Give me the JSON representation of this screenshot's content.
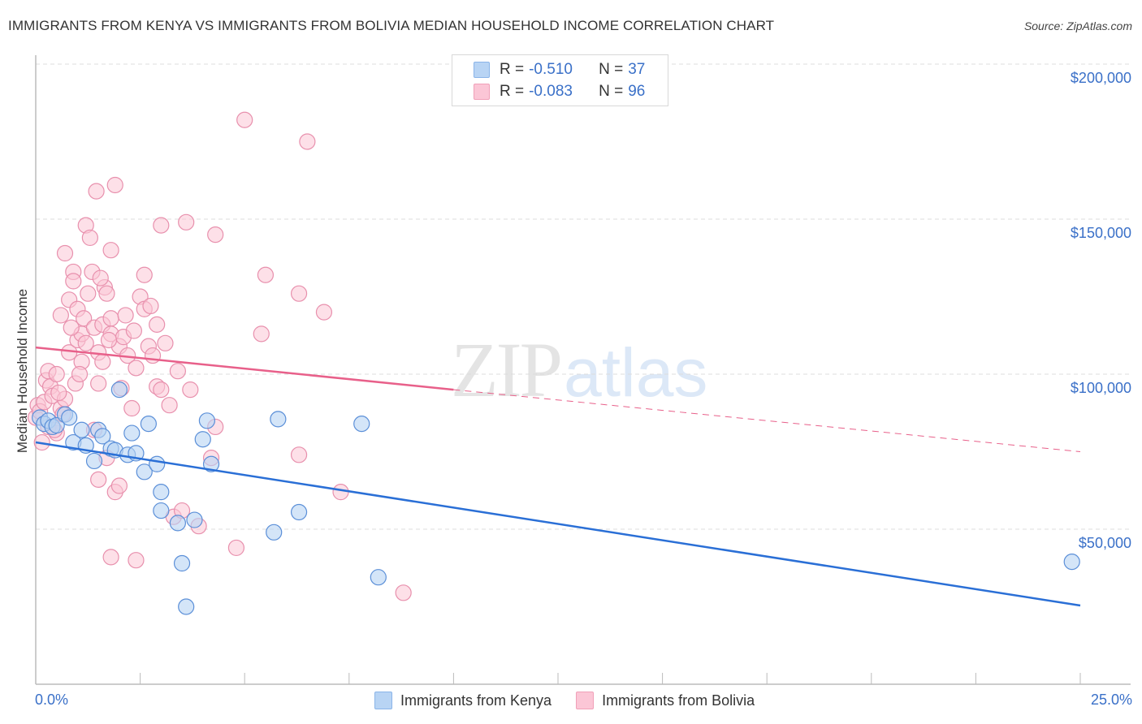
{
  "header": {
    "title": "IMMIGRANTS FROM KENYA VS IMMIGRANTS FROM BOLIVIA MEDIAN HOUSEHOLD INCOME CORRELATION CHART",
    "source": "Source: ZipAtlas.com"
  },
  "legend": {
    "rows": [
      {
        "r_label": "R =",
        "r_value": "-0.510",
        "n_label": "N =",
        "n_value": "37"
      },
      {
        "r_label": "R =",
        "r_value": "-0.083",
        "n_label": "N =",
        "n_value": "96"
      }
    ]
  },
  "axes": {
    "y_label": "Median Household Income",
    "y_ticks": [
      "$200,000",
      "$150,000",
      "$100,000",
      "$50,000"
    ],
    "x_min_label": "0.0%",
    "x_max_label": "25.0%"
  },
  "bottom_legend": {
    "series_1": "Immigrants from Kenya",
    "series_2": "Immigrants from Bolivia"
  },
  "watermark": {
    "zip": "ZIP",
    "atlas": "atlas"
  },
  "colors": {
    "kenya_fill": "#b8d4f4",
    "kenya_stroke": "#5b8fd8",
    "kenya_line": "#2a6fd6",
    "bolivia_fill": "#fbc6d6",
    "bolivia_stroke": "#e890ad",
    "bolivia_line": "#e8608a",
    "tick_text": "#3a70c8"
  },
  "chart_data": {
    "type": "scatter",
    "title": "IMMIGRANTS FROM KENYA VS IMMIGRANTS FROM BOLIVIA MEDIAN HOUSEHOLD INCOME CORRELATION CHART",
    "xlabel": "",
    "ylabel": "Median Household Income",
    "xlim": [
      0,
      25
    ],
    "ylim": [
      0,
      210000
    ],
    "x_unit": "%",
    "y_ticks": [
      50000,
      100000,
      150000,
      200000
    ],
    "x_tick_labels": [
      "0.0%",
      "25.0%"
    ],
    "grid": true,
    "legend_position": "top-center",
    "series": [
      {
        "name": "Immigrants from Kenya",
        "R": -0.51,
        "N": 37,
        "color": "#b8d4f4",
        "trend": {
          "x": [
            0,
            25
          ],
          "y": [
            78000,
            25400
          ]
        },
        "points": [
          [
            0.1,
            86000
          ],
          [
            0.2,
            84000
          ],
          [
            0.3,
            85000
          ],
          [
            0.4,
            83000
          ],
          [
            0.5,
            83500
          ],
          [
            0.7,
            87000
          ],
          [
            0.8,
            86000
          ],
          [
            0.9,
            78000
          ],
          [
            1.1,
            82000
          ],
          [
            1.2,
            77000
          ],
          [
            1.4,
            72000
          ],
          [
            1.5,
            82000
          ],
          [
            1.6,
            80000
          ],
          [
            1.8,
            76000
          ],
          [
            1.9,
            75500
          ],
          [
            2.0,
            95000
          ],
          [
            2.2,
            74000
          ],
          [
            2.3,
            81000
          ],
          [
            2.4,
            74500
          ],
          [
            2.6,
            68500
          ],
          [
            2.7,
            84000
          ],
          [
            2.9,
            71000
          ],
          [
            3.0,
            62000
          ],
          [
            3.0,
            56000
          ],
          [
            3.4,
            52000
          ],
          [
            3.5,
            39000
          ],
          [
            3.6,
            25000
          ],
          [
            3.8,
            53000
          ],
          [
            4.0,
            79000
          ],
          [
            4.1,
            85000
          ],
          [
            4.2,
            71000
          ],
          [
            5.7,
            49000
          ],
          [
            5.8,
            85500
          ],
          [
            6.3,
            55500
          ],
          [
            7.8,
            84000
          ],
          [
            8.2,
            34500
          ],
          [
            24.8,
            39500
          ]
        ]
      },
      {
        "name": "Immigrants from Bolivia",
        "R": -0.083,
        "N": 96,
        "color": "#fbc6d6",
        "trend_solid": {
          "x": [
            0,
            10
          ],
          "y": [
            108600,
            95000
          ]
        },
        "trend_dashed": {
          "x": [
            10,
            25
          ],
          "y": [
            95000,
            75000
          ]
        },
        "points": [
          [
            0.0,
            86000
          ],
          [
            0.05,
            90000
          ],
          [
            0.1,
            88000
          ],
          [
            0.15,
            78000
          ],
          [
            0.2,
            91000
          ],
          [
            0.25,
            98000
          ],
          [
            0.3,
            101000
          ],
          [
            0.35,
            96000
          ],
          [
            0.4,
            93000
          ],
          [
            0.5,
            100000
          ],
          [
            0.5,
            81000
          ],
          [
            0.6,
            89000
          ],
          [
            0.7,
            92000
          ],
          [
            0.8,
            107000
          ],
          [
            0.6,
            119000
          ],
          [
            0.7,
            139000
          ],
          [
            0.8,
            124000
          ],
          [
            0.9,
            133000
          ],
          [
            0.9,
            130000
          ],
          [
            1.0,
            111000
          ],
          [
            1.0,
            121000
          ],
          [
            1.1,
            113000
          ],
          [
            1.15,
            118000
          ],
          [
            1.2,
            110000
          ],
          [
            1.1,
            104000
          ],
          [
            1.2,
            148000
          ],
          [
            1.3,
            144000
          ],
          [
            1.35,
            133000
          ],
          [
            1.4,
            115000
          ],
          [
            1.4,
            82000
          ],
          [
            1.5,
            97000
          ],
          [
            1.5,
            107000
          ],
          [
            1.45,
            159000
          ],
          [
            1.6,
            116000
          ],
          [
            1.6,
            104000
          ],
          [
            1.65,
            128000
          ],
          [
            1.7,
            126000
          ],
          [
            1.8,
            140000
          ],
          [
            1.8,
            118000
          ],
          [
            1.8,
            113000
          ],
          [
            1.7,
            73000
          ],
          [
            1.5,
            66000
          ],
          [
            1.9,
            161000
          ],
          [
            2.0,
            109000
          ],
          [
            2.1,
            112000
          ],
          [
            2.2,
            106000
          ],
          [
            1.9,
            62000
          ],
          [
            2.0,
            64000
          ],
          [
            1.8,
            41000
          ],
          [
            2.4,
            40000
          ],
          [
            2.3,
            89000
          ],
          [
            2.4,
            102000
          ],
          [
            2.5,
            125000
          ],
          [
            2.6,
            132000
          ],
          [
            2.6,
            121000
          ],
          [
            2.7,
            109000
          ],
          [
            2.8,
            106000
          ],
          [
            2.9,
            116000
          ],
          [
            2.9,
            96000
          ],
          [
            3.0,
            95000
          ],
          [
            3.0,
            148000
          ],
          [
            3.1,
            110000
          ],
          [
            3.2,
            90000
          ],
          [
            3.3,
            54000
          ],
          [
            3.5,
            56000
          ],
          [
            3.6,
            149000
          ],
          [
            3.7,
            95000
          ],
          [
            3.9,
            51000
          ],
          [
            4.2,
            73000
          ],
          [
            4.3,
            83000
          ],
          [
            4.3,
            145000
          ],
          [
            4.8,
            44000
          ],
          [
            5.0,
            182000
          ],
          [
            5.4,
            113000
          ],
          [
            5.5,
            132000
          ],
          [
            6.3,
            74000
          ],
          [
            6.3,
            126000
          ],
          [
            6.5,
            175000
          ],
          [
            6.9,
            120000
          ],
          [
            7.3,
            62000
          ],
          [
            8.8,
            29500
          ],
          [
            0.3,
            83000
          ],
          [
            0.45,
            82000
          ],
          [
            1.25,
            126000
          ],
          [
            1.55,
            131000
          ],
          [
            2.15,
            119000
          ],
          [
            2.75,
            122000
          ],
          [
            0.95,
            97000
          ],
          [
            1.05,
            100000
          ],
          [
            2.35,
            114000
          ],
          [
            0.55,
            94000
          ],
          [
            0.65,
            87000
          ],
          [
            1.75,
            111000
          ],
          [
            2.05,
            95500
          ],
          [
            0.85,
            115000
          ],
          [
            3.4,
            101000
          ]
        ]
      }
    ]
  }
}
